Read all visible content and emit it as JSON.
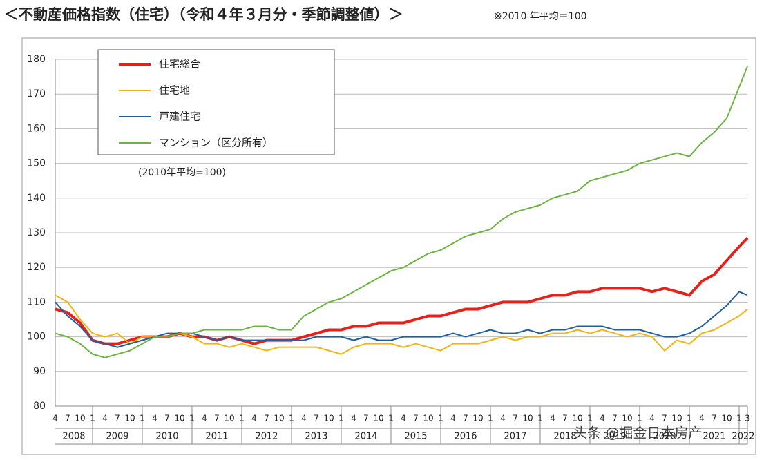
{
  "chart_data": {
    "type": "line",
    "title": "＜不動産価格指数（住宅）（令和４年３月分・季節調整値）＞",
    "subtitle": "※2010 年平均＝100",
    "annotation": "(2010年平均=100)",
    "watermark": "头条 @掘金日本房产",
    "ylim": [
      80,
      180
    ],
    "yticks": [
      80,
      90,
      100,
      110,
      120,
      130,
      140,
      150,
      160,
      170,
      180
    ],
    "grid": true,
    "legend": "upper-left",
    "x": [
      "2008-04",
      "2008-07",
      "2008-10",
      "2009-01",
      "2009-04",
      "2009-07",
      "2009-10",
      "2010-01",
      "2010-04",
      "2010-07",
      "2010-10",
      "2011-01",
      "2011-04",
      "2011-07",
      "2011-10",
      "2012-01",
      "2012-04",
      "2012-07",
      "2012-10",
      "2013-01",
      "2013-04",
      "2013-07",
      "2013-10",
      "2014-01",
      "2014-04",
      "2014-07",
      "2014-10",
      "2015-01",
      "2015-04",
      "2015-07",
      "2015-10",
      "2016-01",
      "2016-04",
      "2016-07",
      "2016-10",
      "2017-01",
      "2017-04",
      "2017-07",
      "2017-10",
      "2018-01",
      "2018-04",
      "2018-07",
      "2018-10",
      "2019-01",
      "2019-04",
      "2019-07",
      "2019-10",
      "2020-01",
      "2020-04",
      "2020-07",
      "2020-10",
      "2021-01",
      "2021-04",
      "2021-07",
      "2021-10",
      "2022-01",
      "2022-03"
    ],
    "x_axis_years": [
      {
        "label": "2008",
        "months": [
          "4",
          "7",
          "10"
        ]
      },
      {
        "label": "2009",
        "months": [
          "1",
          "4",
          "7",
          "10"
        ]
      },
      {
        "label": "2010",
        "months": [
          "1",
          "4",
          "7",
          "10"
        ]
      },
      {
        "label": "2011",
        "months": [
          "1",
          "4",
          "7",
          "10"
        ]
      },
      {
        "label": "2012",
        "months": [
          "1",
          "4",
          "7",
          "10"
        ]
      },
      {
        "label": "2013",
        "months": [
          "1",
          "4",
          "7",
          "10"
        ]
      },
      {
        "label": "2014",
        "months": [
          "1",
          "4",
          "7",
          "10"
        ]
      },
      {
        "label": "2015",
        "months": [
          "1",
          "4",
          "7",
          "10"
        ]
      },
      {
        "label": "2016",
        "months": [
          "1",
          "4",
          "7",
          "10"
        ]
      },
      {
        "label": "2017",
        "months": [
          "1",
          "4",
          "7",
          "10"
        ]
      },
      {
        "label": "2018",
        "months": [
          "1",
          "4",
          "7",
          "10"
        ]
      },
      {
        "label": "2019",
        "months": [
          "1",
          "4",
          "7",
          "10"
        ]
      },
      {
        "label": "2020",
        "months": [
          "1",
          "4",
          "7",
          "10"
        ]
      },
      {
        "label": "2021",
        "months": [
          "1",
          "4",
          "7",
          "10"
        ]
      },
      {
        "label": "2022",
        "months": [
          "1",
          "3"
        ]
      }
    ],
    "series": [
      {
        "name": "住宅総合",
        "color": "#e8201c",
        "width": 4,
        "values": [
          108,
          107,
          104,
          99,
          98,
          98,
          99,
          100,
          100,
          100,
          101,
          100,
          100,
          99,
          100,
          99,
          98,
          99,
          99,
          99,
          100,
          101,
          102,
          102,
          103,
          103,
          104,
          104,
          104,
          105,
          106,
          106,
          107,
          108,
          108,
          109,
          110,
          110,
          110,
          111,
          112,
          112,
          113,
          113,
          114,
          114,
          114,
          114,
          113,
          114,
          113,
          112,
          116,
          118,
          122,
          126,
          128.5
        ]
      },
      {
        "name": "住宅地",
        "color": "#f2b412",
        "width": 2,
        "values": [
          112,
          110,
          105,
          101,
          100,
          101,
          98,
          100,
          100,
          100,
          101,
          100,
          98,
          98,
          97,
          98,
          97,
          96,
          97,
          97,
          97,
          97,
          96,
          95,
          97,
          98,
          98,
          98,
          97,
          98,
          97,
          96,
          98,
          98,
          98,
          99,
          100,
          99,
          100,
          100,
          101,
          101,
          102,
          101,
          102,
          101,
          100,
          101,
          100,
          96,
          99,
          98,
          101,
          102,
          104,
          106,
          108
        ]
      },
      {
        "name": "戸建住宅",
        "color": "#1f5fa0",
        "width": 2,
        "values": [
          110,
          106,
          103,
          99,
          98,
          97,
          98,
          99,
          100,
          101,
          101,
          101,
          100,
          99,
          100,
          99,
          99,
          99,
          99,
          99,
          99,
          100,
          100,
          100,
          99,
          100,
          99,
          99,
          100,
          100,
          100,
          100,
          101,
          100,
          101,
          102,
          101,
          101,
          102,
          101,
          102,
          102,
          103,
          103,
          103,
          102,
          102,
          102,
          101,
          100,
          100,
          101,
          103,
          106,
          109,
          113,
          112
        ]
      },
      {
        "name": "マンション（区分所有）",
        "color": "#6cb33f",
        "width": 2,
        "values": [
          101,
          100,
          98,
          95,
          94,
          95,
          96,
          98,
          100,
          100,
          101,
          101,
          102,
          102,
          102,
          102,
          103,
          103,
          102,
          102,
          106,
          108,
          110,
          111,
          113,
          115,
          117,
          119,
          120,
          122,
          124,
          125,
          127,
          129,
          130,
          131,
          134,
          136,
          137,
          138,
          140,
          141,
          142,
          145,
          146,
          147,
          148,
          150,
          151,
          152,
          153,
          152,
          156,
          159,
          163,
          172,
          178
        ]
      }
    ]
  }
}
